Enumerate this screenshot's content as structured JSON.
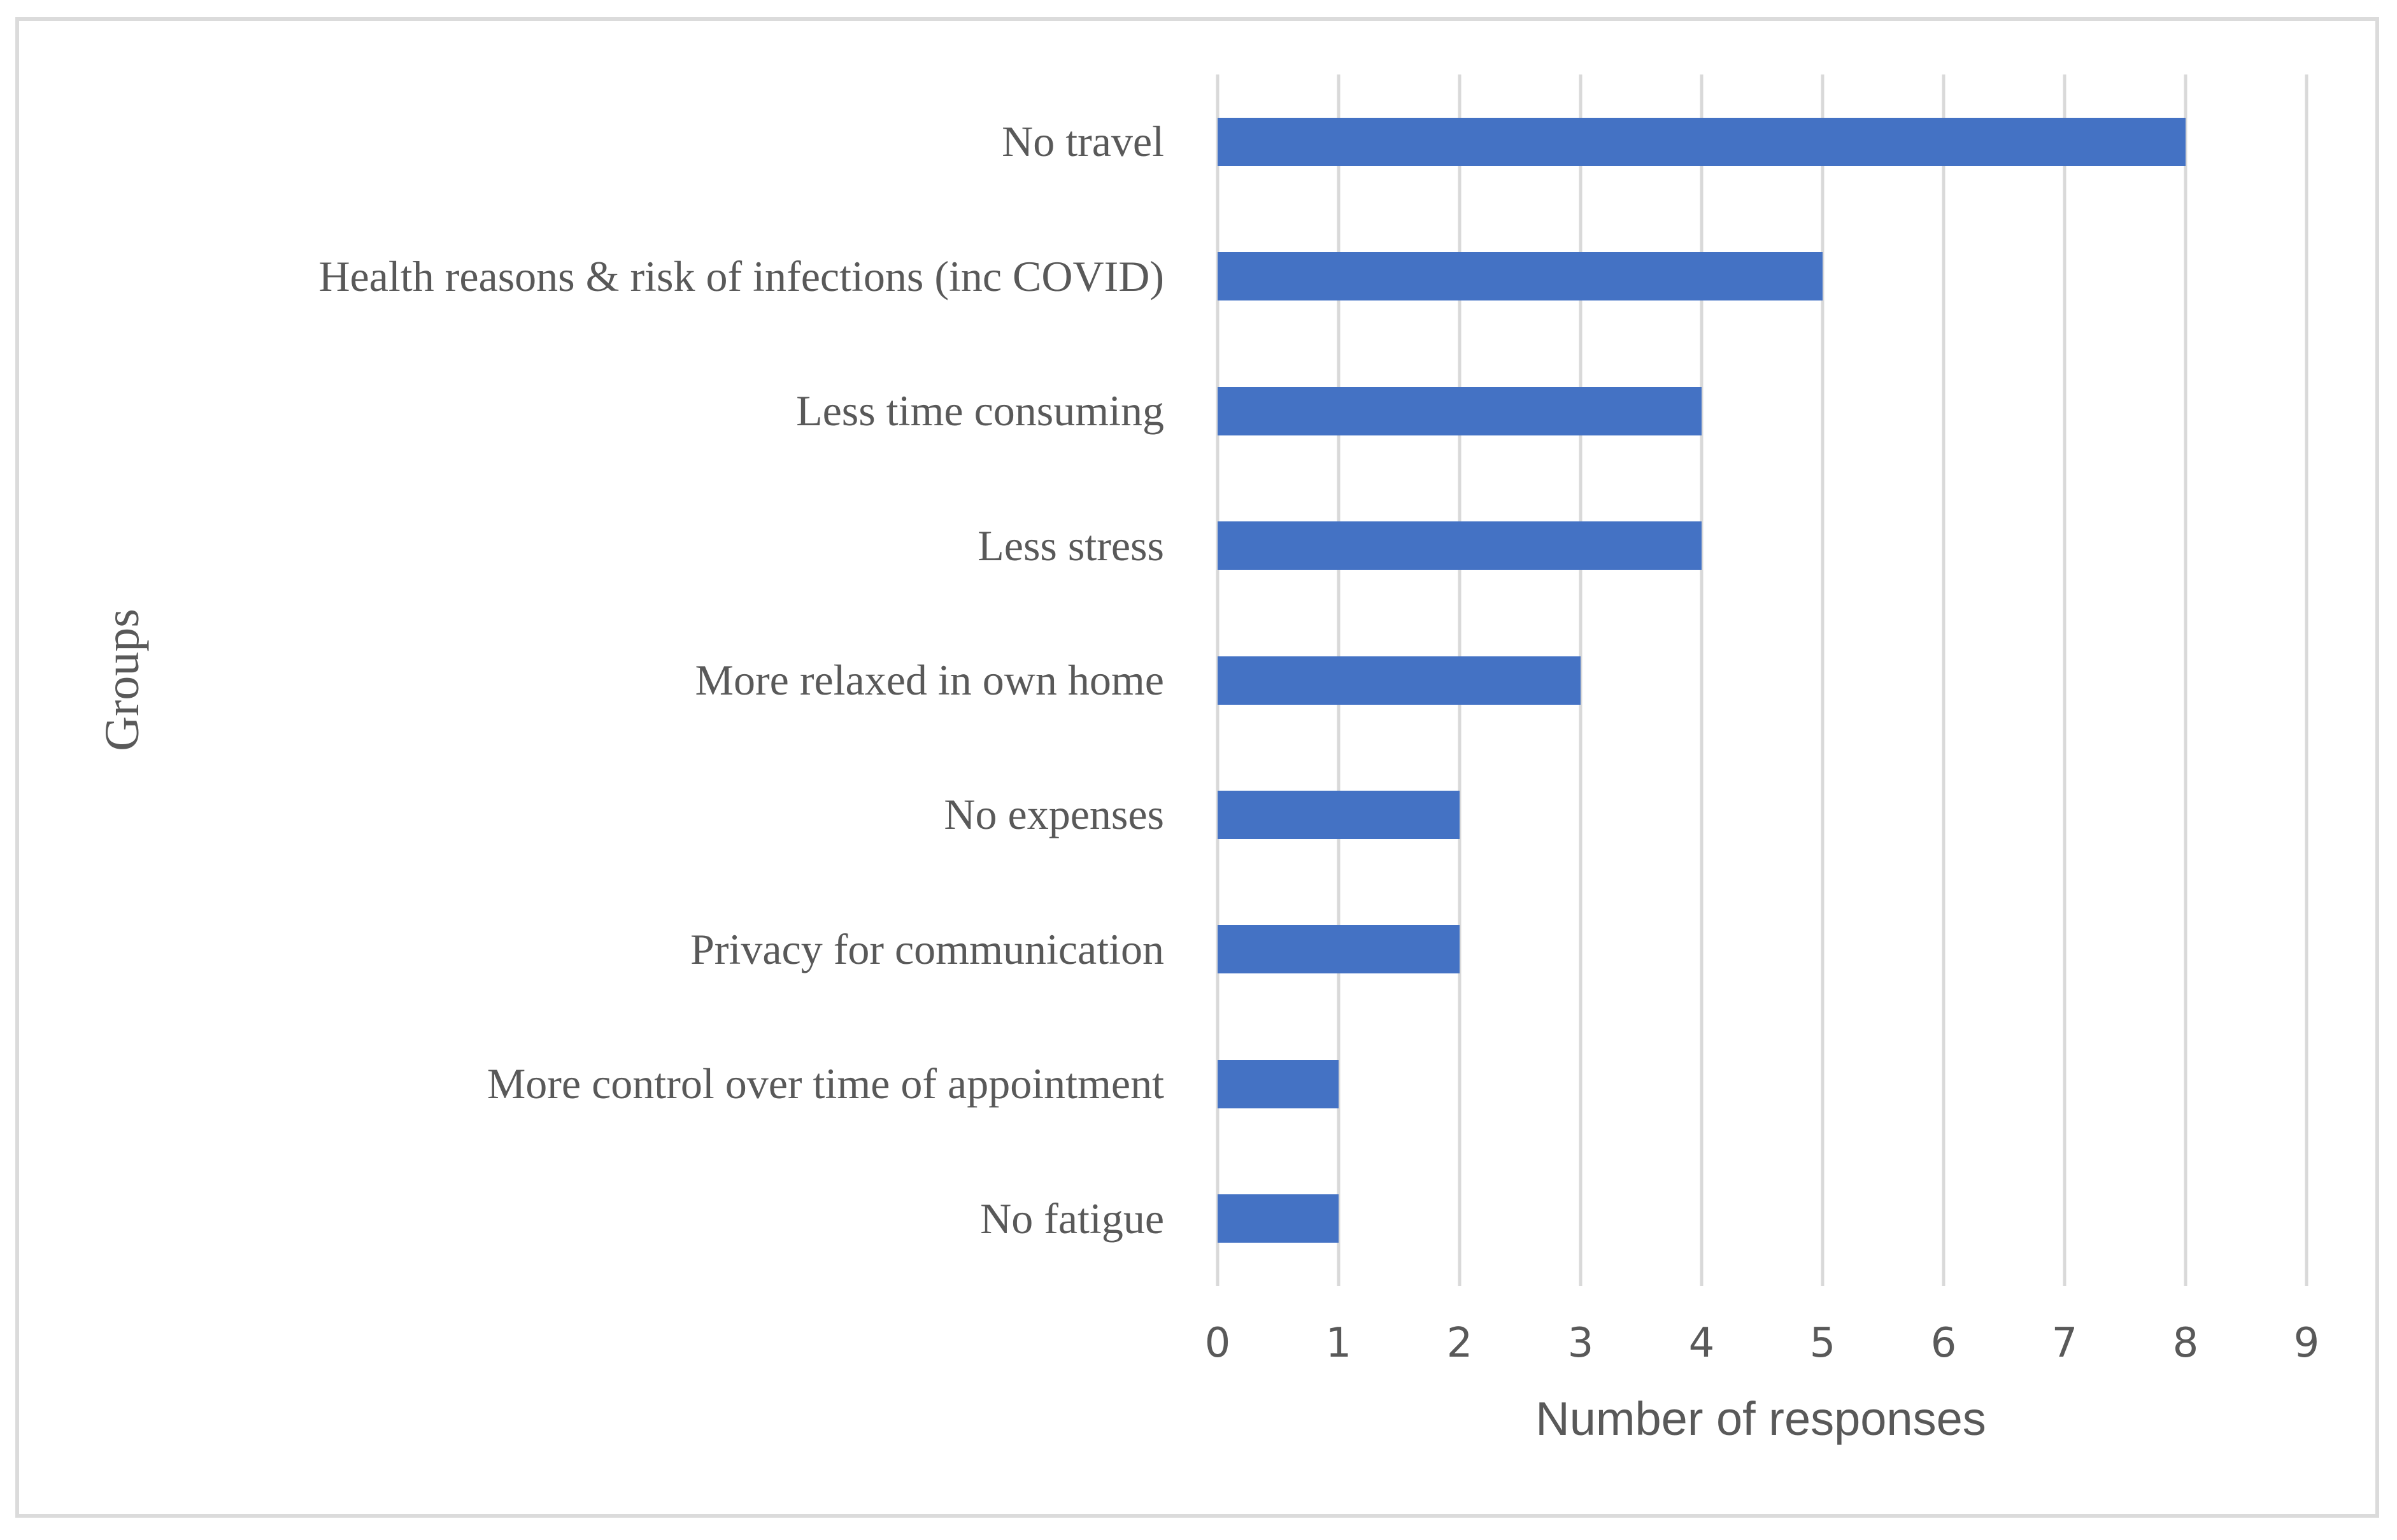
{
  "figure": {
    "background_color": "#ffffff",
    "frame_color": "#dbdbdb"
  },
  "chart_data": {
    "type": "bar",
    "orientation": "horizontal",
    "title": "",
    "xlabel": "Number of responses",
    "ylabel": "Groups",
    "categories": [
      "No travel",
      "Health reasons & risk of infections (inc COVID)",
      "Less time consuming",
      "Less stress",
      "More relaxed in own home",
      "No expenses",
      "Privacy for communication",
      "More control over time of appointment",
      "No fatigue"
    ],
    "values": [
      8,
      5,
      4,
      4,
      3,
      2,
      2,
      1,
      1
    ],
    "xlim": [
      0,
      9
    ],
    "x_ticks": [
      "0",
      "1",
      "2",
      "3",
      "4",
      "5",
      "6",
      "7",
      "8",
      "9"
    ],
    "grid": "vertical",
    "legend": "none",
    "bar_color": "#4472c4",
    "gridline_color": "#d9d9d9",
    "text_color": "#595959"
  }
}
